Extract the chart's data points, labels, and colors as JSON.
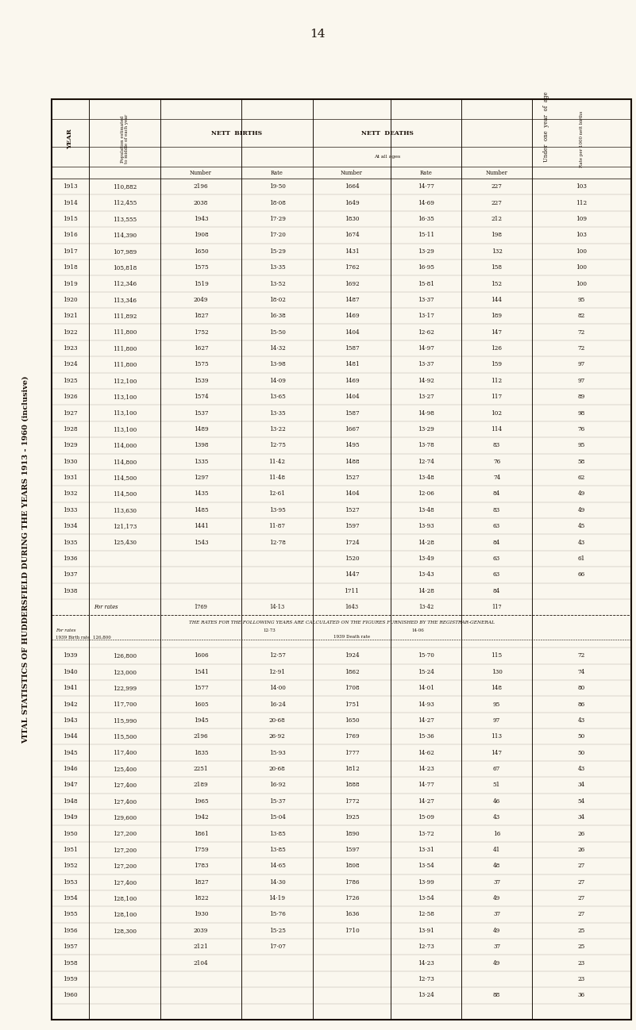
{
  "title": "VITAL STATISTICS OF HUDDERSFIELD DURING THE YEARS 1913 - 1960 (inclusive)",
  "page_number": "14",
  "bg": "#FAF7EE",
  "tc": "#1a1008",
  "years1": [
    "1913",
    "1914",
    "1915",
    "1916",
    "1917",
    "1918",
    "1919",
    "1920",
    "1921",
    "1922",
    "1923",
    "1924",
    "1925",
    "1926",
    "1927",
    "1928",
    "1929",
    "1930",
    "1931",
    "1932",
    "1933",
    "1934",
    "1935",
    "1936",
    "1937",
    "1938"
  ],
  "pop1": [
    "110,882",
    "112,455",
    "113,555",
    "114,390",
    "107,989",
    "105,818",
    "112,346",
    "113,346",
    "111,892",
    "111,800",
    "111,800",
    "111,800",
    "112,100",
    "113,100",
    "113,100",
    "113,100",
    "114,000",
    "114,800",
    "114,500",
    "114,500",
    "113,630",
    "121,173",
    "125,430",
    "",
    "",
    ""
  ],
  "bn1": [
    "2196",
    "2038",
    "1943",
    "1908",
    "1650",
    "1575",
    "1519",
    "2049",
    "1827",
    "1752",
    "1627",
    "1575",
    "1539",
    "1574",
    "1537",
    "1489",
    "1398",
    "1335",
    "1297",
    "1435",
    "1485",
    "1441",
    "1543",
    "",
    "",
    ""
  ],
  "br1": [
    "19·50",
    "18·08",
    "17·29",
    "17·20",
    "15·29",
    "13·35",
    "13·52",
    "18·02",
    "16·38",
    "15·50",
    "14·32",
    "13·98",
    "14·09",
    "13·65",
    "13·35",
    "13·22",
    "12·75",
    "11·42",
    "11·48",
    "12·61",
    "13·95",
    "11·87",
    "12·78",
    "",
    "",
    ""
  ],
  "dn1": [
    "1664",
    "1649",
    "1830",
    "1674",
    "1431",
    "1762",
    "1692",
    "1487",
    "1469",
    "1404",
    "1587",
    "1481",
    "1469",
    "1404",
    "1587",
    "1667",
    "1495",
    "1488",
    "1527",
    "1404",
    "1527",
    "1597",
    "1724",
    "1520",
    "1447",
    "1711"
  ],
  "dr1": [
    "14·77",
    "14·69",
    "16·35",
    "15·11",
    "13·29",
    "16·95",
    "15·81",
    "13·37",
    "13·17",
    "12·62",
    "14·97",
    "13·37",
    "14·92",
    "13·27",
    "14·98",
    "13·29",
    "13·78",
    "12·74",
    "13·48",
    "12·06",
    "13·48",
    "13·93",
    "14·28",
    "13·49",
    "13·43",
    "14·28"
  ],
  "in1": [
    "227",
    "227",
    "212",
    "198",
    "132",
    "158",
    "152",
    "144",
    "189",
    "147",
    "126",
    "159",
    "112",
    "117",
    "102",
    "114",
    "83",
    "76",
    "74",
    "84",
    "83",
    "63",
    "84",
    "63",
    "63",
    "84"
  ],
  "ir1": [
    "103",
    "112",
    "109",
    "103",
    "100",
    "100",
    "100",
    "95",
    "82",
    "72",
    "72",
    "97",
    "97",
    "89",
    "98",
    "76",
    "95",
    "58",
    "62",
    "49",
    "49",
    "45",
    "43",
    "61",
    "66",
    ""
  ],
  "for_rates_bn": "1769",
  "for_rates_br": "14·13",
  "for_rates_dn": "1643",
  "for_rates_dr": "13·42",
  "for_rates_in": "117",
  "for_rates_ir": "",
  "note": "THE RATES FOR THE FOLLOWING YEARS ARE CALCULATED ON THE FIGURES FURNISHED BY THE REGISTRAR-GENERAL",
  "note_br1": "12·73",
  "note_dr1": "14·06",
  "note_birth_pop": "126,800",
  "note_death_pop": "",
  "years2": [
    "1939",
    "1940",
    "1941",
    "1942",
    "1943",
    "1944",
    "1945",
    "1946",
    "1947",
    "1948",
    "1949",
    "1950",
    "1951",
    "1952",
    "1953",
    "1954",
    "1955",
    "1956",
    "1957",
    "1958",
    "1959",
    "1960"
  ],
  "pop2": [
    "126,800",
    "123,000",
    "122,999",
    "117,700",
    "115,990",
    "115,500",
    "117,400",
    "125,400",
    "127,400",
    "127,400",
    "129,600",
    "127,200",
    "127,200",
    "127,200",
    "127,400",
    "128,100",
    "128,100",
    "128,300",
    "",
    "",
    "",
    ""
  ],
  "bn2": [
    "1606",
    "1541",
    "1577",
    "1605",
    "1945",
    "2196",
    "1835",
    "2251",
    "2189",
    "1965",
    "1942",
    "1861",
    "1759",
    "1783",
    "1827",
    "1822",
    "1930",
    "2039",
    "2121",
    "2104",
    "",
    ""
  ],
  "br2": [
    "12·57",
    "12·91",
    "14·00",
    "16·24",
    "20·68",
    "26·92",
    "15·93",
    "20·68",
    "16·92",
    "15·37",
    "15·04",
    "13·85",
    "13·85",
    "14·65",
    "14·30",
    "14·19",
    "15·76",
    "15·25",
    "17·07",
    "",
    "",
    ""
  ],
  "dn2": [
    "1924",
    "1862",
    "1708",
    "1751",
    "1650",
    "1769",
    "1777",
    "1812",
    "1888",
    "1772",
    "1925",
    "1890",
    "1597",
    "1808",
    "1786",
    "1726",
    "1636",
    "1710",
    "",
    "",
    "",
    ""
  ],
  "dr2": [
    "15·70",
    "15·24",
    "14·01",
    "14·93",
    "14·27",
    "15·36",
    "14·62",
    "14·23",
    "14·77",
    "14·27",
    "15·09",
    "13·72",
    "13·31",
    "13·54",
    "13·99",
    "13·54",
    "12·58",
    "13·91",
    "12·73",
    "14·23",
    "12·73",
    "13·24"
  ],
  "in2": [
    "115",
    "130",
    "148",
    "95",
    "97",
    "113",
    "147",
    "67",
    "51",
    "46",
    "43",
    "16",
    "41",
    "48",
    "37",
    "49",
    "37",
    "49",
    "37",
    "49",
    "",
    "88"
  ],
  "ir2": [
    "72",
    "74",
    "80",
    "86",
    "43",
    "50",
    "50",
    "43",
    "34",
    "54",
    "34",
    "26",
    "26",
    "27",
    "27",
    "27",
    "27",
    "25",
    "25",
    "23",
    "23",
    "36"
  ]
}
